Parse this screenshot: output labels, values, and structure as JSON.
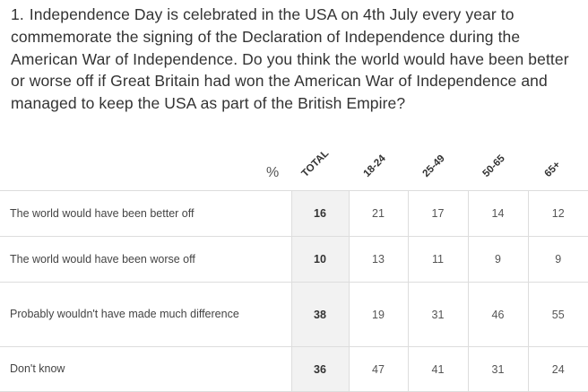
{
  "question": {
    "number": "1.",
    "text": "Independence Day is celebrated in the USA on 4th July every year to commemorate the signing of the Declaration of Independence during the American War of Independence. Do you think the world would have been better or worse off if Great Britain had won the American War of Independence and managed to keep the USA as part of the British Empire?"
  },
  "table": {
    "percent_symbol": "%",
    "columns": [
      "TOTAL",
      "18-24",
      "25-49",
      "50-65",
      "65+"
    ],
    "rows": [
      {
        "label": "The world would have been better off",
        "values": [
          "16",
          "21",
          "17",
          "14",
          "12"
        ]
      },
      {
        "label": "The world would have been worse off",
        "values": [
          "10",
          "13",
          "11",
          "9",
          "9"
        ]
      },
      {
        "label": "Probably wouldn't have made much difference",
        "values": [
          "38",
          "19",
          "31",
          "46",
          "55"
        ]
      },
      {
        "label": "Don't know",
        "values": [
          "36",
          "47",
          "41",
          "31",
          "24"
        ]
      }
    ]
  }
}
